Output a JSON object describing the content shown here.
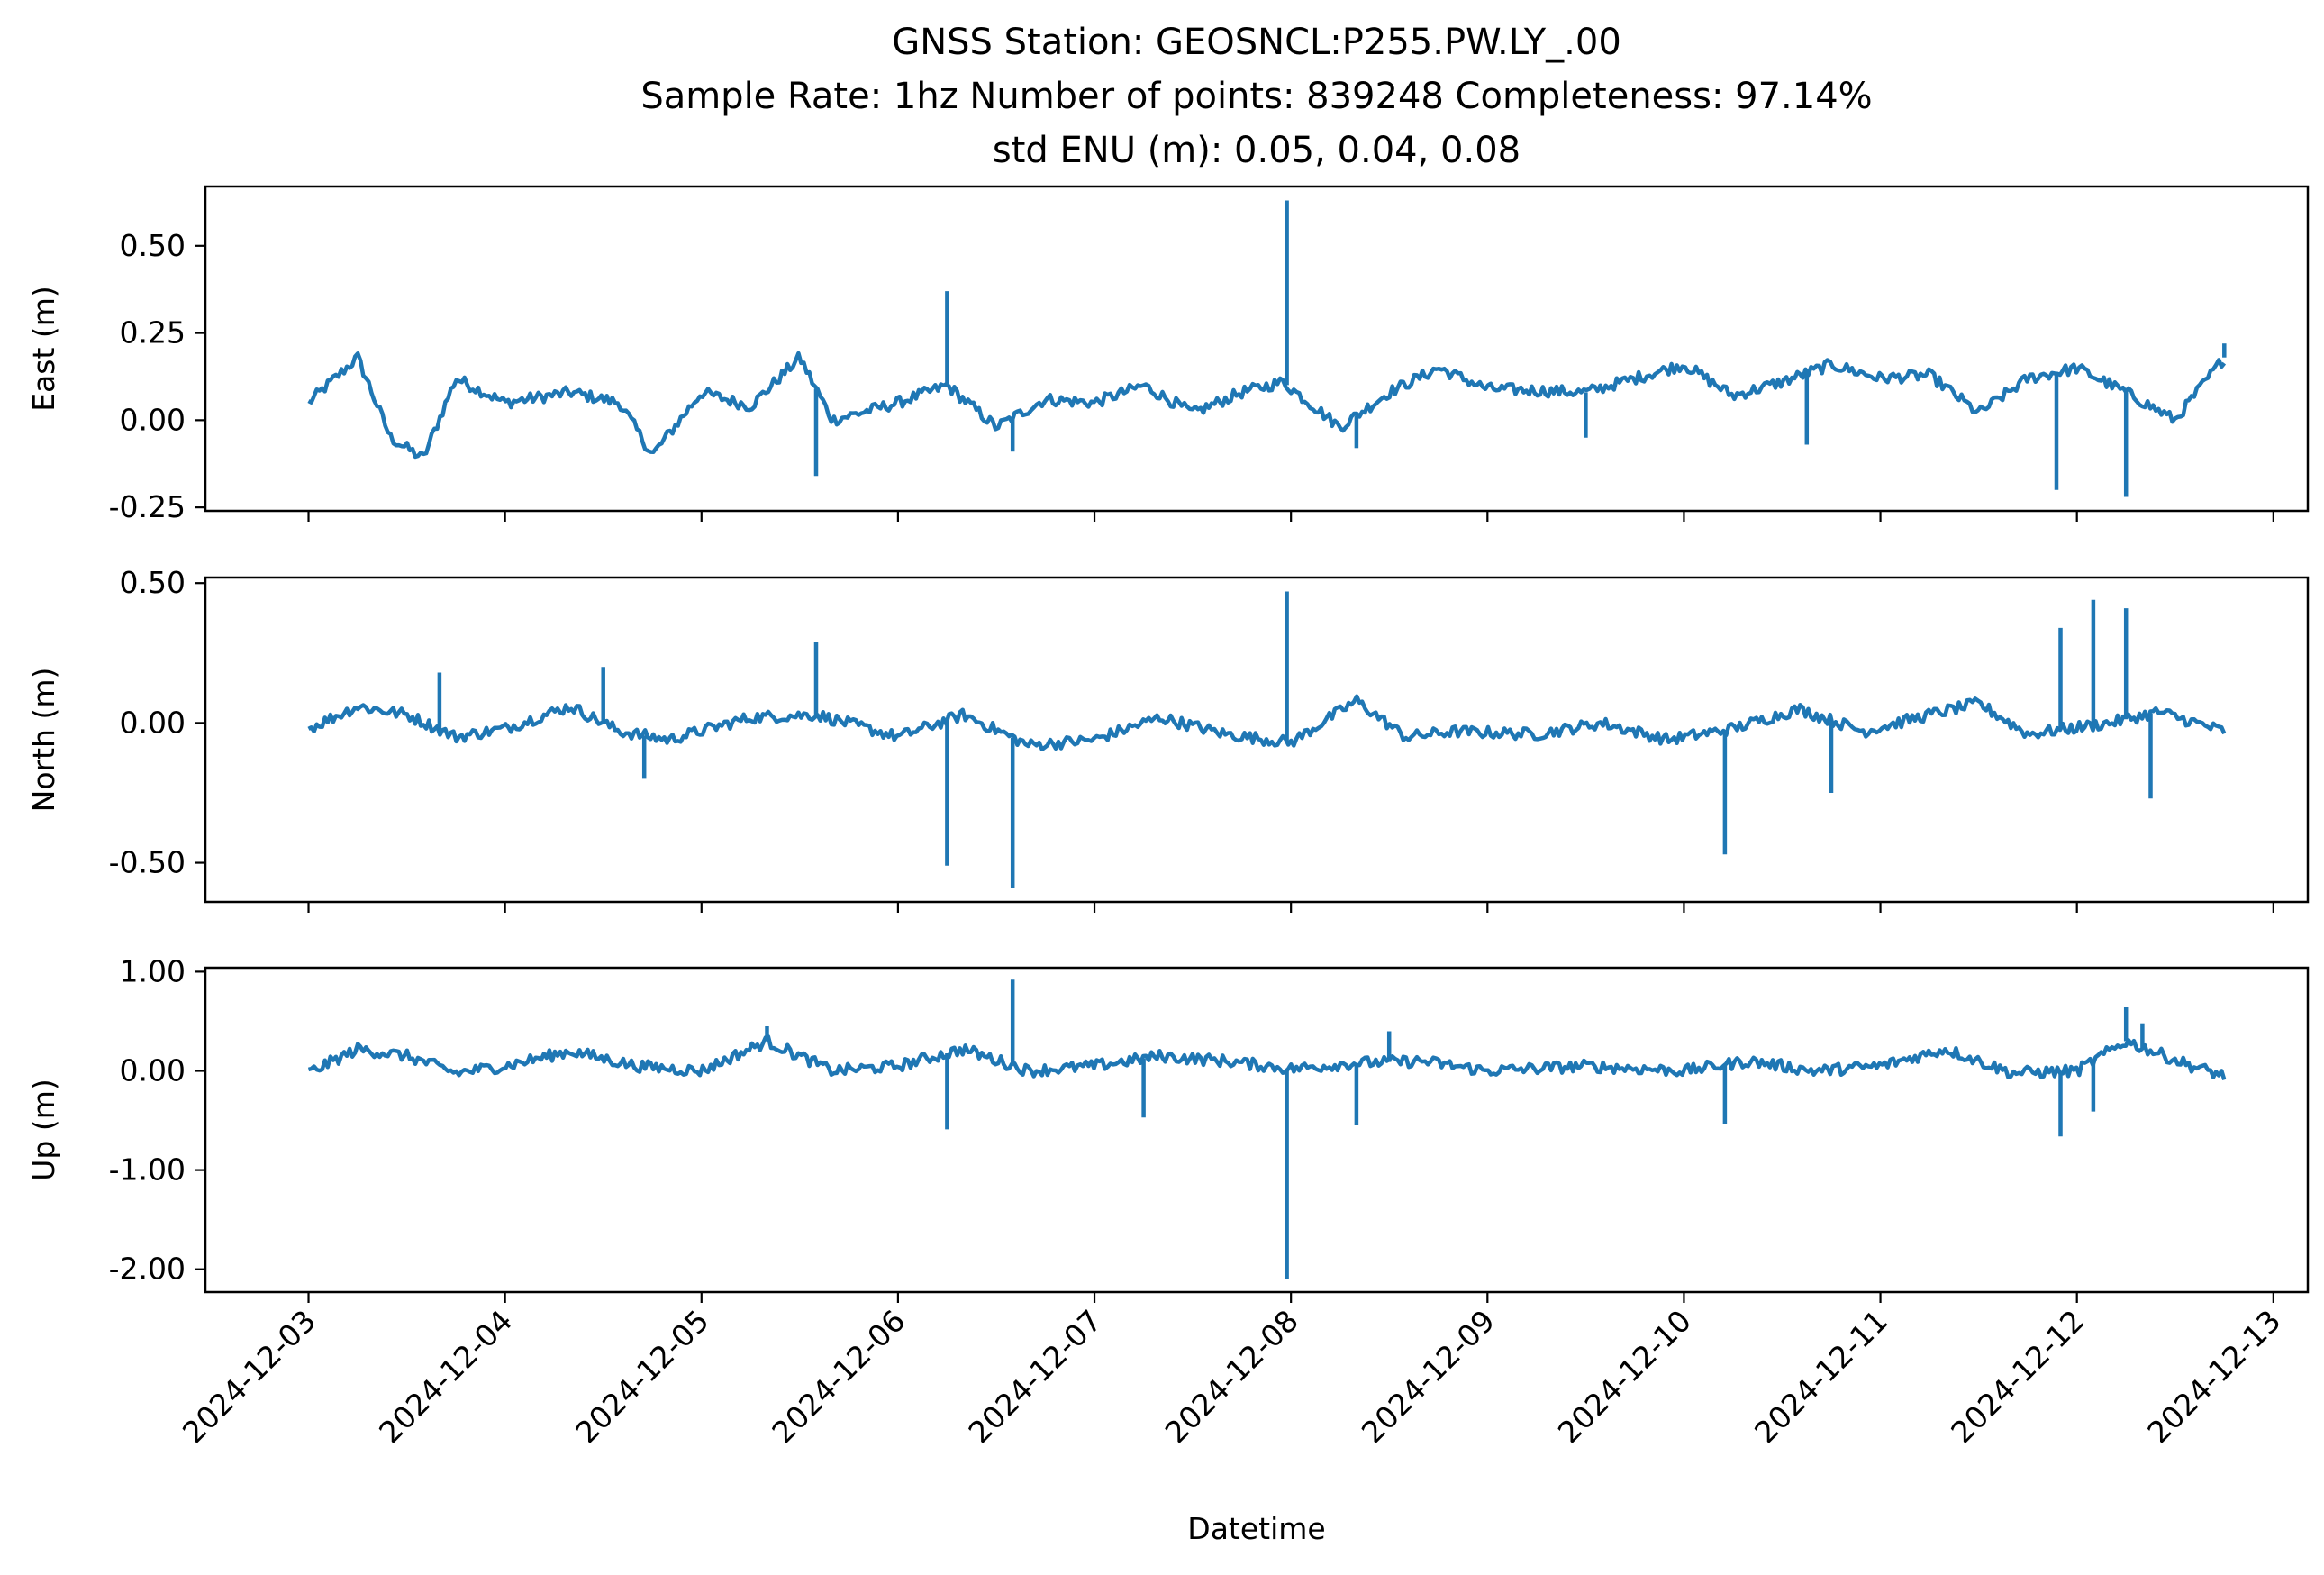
{
  "chart_data": {
    "type": "line",
    "title_lines": [
      "GNSS Station: GEOSNCL:P255.PW.LY_.00",
      "Sample Rate: 1hz   Number of points: 839248    Completeness:  97.14%",
      "std ENU (m):  0.05, 0.04, 0.08"
    ],
    "xlabel": "Datetime",
    "x_ticks": [
      "2024-12-03",
      "2024-12-04",
      "2024-12-05",
      "2024-12-06",
      "2024-12-07",
      "2024-12-08",
      "2024-12-09",
      "2024-12-10",
      "2024-12-11",
      "2024-12-12",
      "2024-12-13"
    ],
    "xlim": [
      "2024-12-02 11:24",
      "2024-12-13 04:12"
    ],
    "series_color": "#1f77b4",
    "panels": [
      {
        "id": "east",
        "ylabel": "East (m)",
        "ylim": [
          -0.26,
          0.67
        ],
        "y_ticks": [
          0.5,
          0.25,
          0.0,
          -0.25
        ],
        "y_tick_labels": [
          "0.50",
          "0.25",
          "0.00",
          "-0.25"
        ],
        "series": [
          {
            "x": [
              "2024-12-03 00:00",
              "2024-12-03 06:00",
              "2024-12-03 10:00",
              "2024-12-03 14:00",
              "2024-12-03 18:00",
              "2024-12-04 00:00",
              "2024-12-04 08:00",
              "2024-12-04 14:00",
              "2024-12-04 18:00",
              "2024-12-05 00:00",
              "2024-12-05 06:00",
              "2024-12-05 12:00",
              "2024-12-05 16:00",
              "2024-12-06 00:00",
              "2024-12-06 06:00",
              "2024-12-06 12:00",
              "2024-12-06 18:00",
              "2024-12-07 00:00",
              "2024-12-07 06:00",
              "2024-12-07 12:00",
              "2024-12-07 18:00",
              "2024-12-07 23:00",
              "2024-12-08 06:00",
              "2024-12-08 12:00",
              "2024-12-08 18:00",
              "2024-12-09 00:00",
              "2024-12-09 12:00",
              "2024-12-10 00:00",
              "2024-12-10 06:00",
              "2024-12-10 12:00",
              "2024-12-10 18:00",
              "2024-12-11 00:00",
              "2024-12-11 06:00",
              "2024-12-11 12:00",
              "2024-12-11 18:00",
              "2024-12-12 00:00",
              "2024-12-12 06:00",
              "2024-12-12 12:00",
              "2024-12-12 18:00"
            ],
            "y": [
              0.05,
              0.18,
              -0.05,
              -0.11,
              0.12,
              0.05,
              0.08,
              0.05,
              -0.1,
              0.08,
              0.04,
              0.18,
              0.0,
              0.05,
              0.1,
              -0.02,
              0.06,
              0.05,
              0.1,
              0.02,
              0.08,
              0.11,
              -0.02,
              0.08,
              0.15,
              0.09,
              0.08,
              0.16,
              0.07,
              0.11,
              0.16,
              0.12,
              0.13,
              0.02,
              0.12,
              0.15,
              0.08,
              0.0,
              0.18
            ]
          }
        ],
        "spikes": [
          {
            "x": "2024-12-05 14:00",
            "y": -0.16
          },
          {
            "x": "2024-12-06 06:00",
            "y": 0.37
          },
          {
            "x": "2024-12-06 14:00",
            "y": -0.09
          },
          {
            "x": "2024-12-07 23:30",
            "y": 0.63
          },
          {
            "x": "2024-12-08 08:00",
            "y": -0.08
          },
          {
            "x": "2024-12-09 12:00",
            "y": -0.05
          },
          {
            "x": "2024-12-10 15:00",
            "y": -0.07
          },
          {
            "x": "2024-12-11 21:30",
            "y": -0.2
          },
          {
            "x": "2024-12-12 06:00",
            "y": -0.22
          },
          {
            "x": "2024-12-12 18:00",
            "y": 0.22
          }
        ]
      },
      {
        "id": "north",
        "ylabel": "North (m)",
        "ylim": [
          -0.64,
          0.52
        ],
        "y_ticks": [
          0.5,
          0.0,
          -0.5
        ],
        "y_tick_labels": [
          "0.50",
          "0.00",
          "-0.50"
        ],
        "series": [
          {
            "x": [
              "2024-12-03 00:00",
              "2024-12-03 06:00",
              "2024-12-03 12:00",
              "2024-12-03 18:00",
              "2024-12-04 00:00",
              "2024-12-04 08:00",
              "2024-12-04 14:00",
              "2024-12-04 20:00",
              "2024-12-05 06:00",
              "2024-12-05 14:00",
              "2024-12-06 00:00",
              "2024-12-06 08:00",
              "2024-12-06 16:00",
              "2024-12-07 00:00",
              "2024-12-07 08:00",
              "2024-12-07 16:00",
              "2024-12-08 00:00",
              "2024-12-08 08:00",
              "2024-12-08 14:00",
              "2024-12-08 20:00",
              "2024-12-09 06:00",
              "2024-12-09 14:00",
              "2024-12-09 22:00",
              "2024-12-10 06:00",
              "2024-12-10 14:00",
              "2024-12-10 22:00",
              "2024-12-11 06:00",
              "2024-12-11 12:00",
              "2024-12-11 18:00",
              "2024-12-12 04:00",
              "2024-12-12 10:00",
              "2024-12-12 18:00"
            ],
            "y": [
              -0.02,
              0.06,
              0.03,
              -0.05,
              -0.02,
              0.06,
              -0.03,
              -0.06,
              0.02,
              0.03,
              -0.05,
              0.03,
              -0.08,
              -0.06,
              0.02,
              -0.04,
              -0.07,
              0.08,
              -0.05,
              -0.03,
              -0.04,
              0.0,
              -0.06,
              -0.02,
              0.05,
              -0.03,
              0.03,
              0.07,
              -0.04,
              0.0,
              0.04,
              -0.03
            ]
          }
        ],
        "spikes": [
          {
            "x": "2024-12-03 16:00",
            "y": 0.18
          },
          {
            "x": "2024-12-04 12:00",
            "y": 0.2
          },
          {
            "x": "2024-12-04 17:00",
            "y": -0.2
          },
          {
            "x": "2024-12-05 14:00",
            "y": 0.29
          },
          {
            "x": "2024-12-06 06:00",
            "y": -0.51
          },
          {
            "x": "2024-12-06 14:00",
            "y": -0.59
          },
          {
            "x": "2024-12-07 23:30",
            "y": 0.47
          },
          {
            "x": "2024-12-10 05:00",
            "y": -0.47
          },
          {
            "x": "2024-12-10 18:00",
            "y": -0.25
          },
          {
            "x": "2024-12-11 22:00",
            "y": 0.34
          },
          {
            "x": "2024-12-12 02:00",
            "y": 0.44
          },
          {
            "x": "2024-12-12 06:00",
            "y": 0.41
          },
          {
            "x": "2024-12-12 09:00",
            "y": -0.27
          }
        ]
      },
      {
        "id": "up",
        "ylabel": "Up (m)",
        "ylim": [
          -2.23,
          1.04
        ],
        "y_ticks": [
          1.0,
          0.0,
          -1.0,
          -2.0
        ],
        "y_tick_labels": [
          "1.00",
          "0.00",
          "-1.00",
          "-2.00"
        ],
        "series": [
          {
            "x": [
              "2024-12-03 00:00",
              "2024-12-03 06:00",
              "2024-12-03 12:00",
              "2024-12-03 18:00",
              "2024-12-04 00:00",
              "2024-12-04 08:00",
              "2024-12-04 16:00",
              "2024-12-05 00:00",
              "2024-12-05 08:00",
              "2024-12-05 16:00",
              "2024-12-06 00:00",
              "2024-12-06 08:00",
              "2024-12-06 16:00",
              "2024-12-07 00:00",
              "2024-12-07 08:00",
              "2024-12-07 16:00",
              "2024-12-08 00:00",
              "2024-12-08 08:00",
              "2024-12-08 16:00",
              "2024-12-09 00:00",
              "2024-12-09 12:00",
              "2024-12-10 00:00",
              "2024-12-10 08:00",
              "2024-12-10 16:00",
              "2024-12-11 00:00",
              "2024-12-11 08:00",
              "2024-12-11 16:00",
              "2024-12-12 00:00",
              "2024-12-12 06:00",
              "2024-12-12 14:00",
              "2024-12-12 18:00"
            ],
            "y": [
              -0.02,
              0.22,
              0.15,
              -0.02,
              0.05,
              0.2,
              0.05,
              0.0,
              0.3,
              0.0,
              0.05,
              0.22,
              0.0,
              0.05,
              0.15,
              0.1,
              0.02,
              0.08,
              0.1,
              0.0,
              0.05,
              0.0,
              0.1,
              0.0,
              0.05,
              0.22,
              -0.02,
              0.0,
              0.3,
              0.05,
              -0.05
            ]
          }
        ],
        "spikes": [
          {
            "x": "2024-12-05 08:00",
            "y": 0.45
          },
          {
            "x": "2024-12-06 06:00",
            "y": -0.59
          },
          {
            "x": "2024-12-06 14:00",
            "y": 0.92
          },
          {
            "x": "2024-12-07 06:00",
            "y": -0.47
          },
          {
            "x": "2024-12-07 23:30",
            "y": -2.1
          },
          {
            "x": "2024-12-08 08:00",
            "y": -0.55
          },
          {
            "x": "2024-12-08 12:00",
            "y": 0.4
          },
          {
            "x": "2024-12-10 05:00",
            "y": -0.54
          },
          {
            "x": "2024-12-11 22:00",
            "y": -0.66
          },
          {
            "x": "2024-12-12 06:00",
            "y": 0.64
          },
          {
            "x": "2024-12-12 08:00",
            "y": 0.48
          },
          {
            "x": "2024-12-12 02:00",
            "y": -0.41
          }
        ]
      }
    ]
  }
}
